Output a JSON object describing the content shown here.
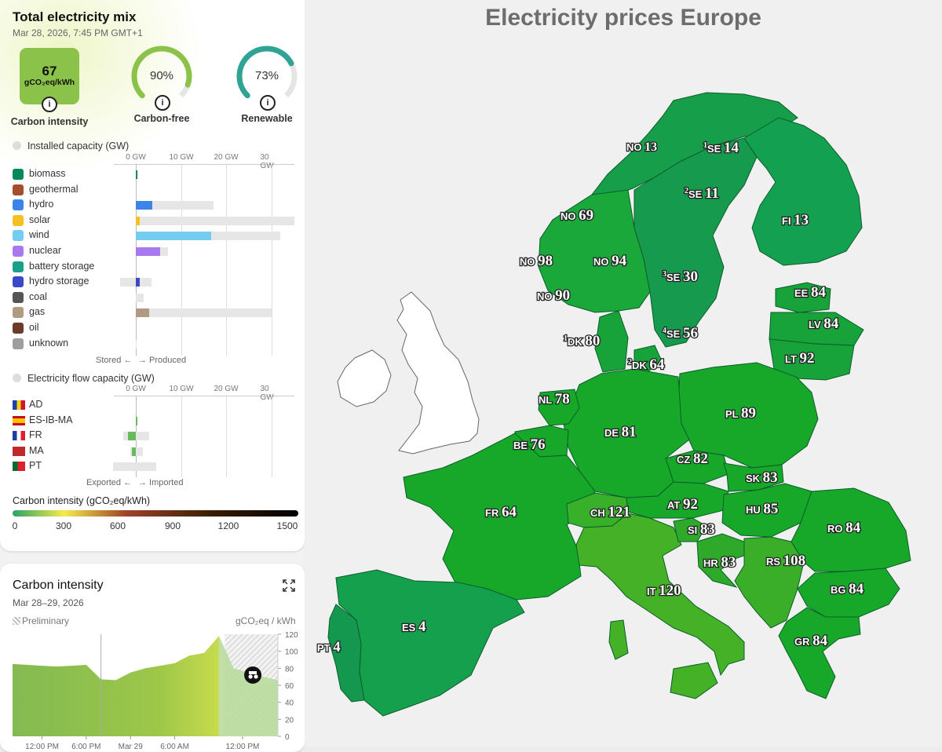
{
  "panel": {
    "title": "Total electricity mix",
    "datetime": "Mar 28, 2026, 7:45 PM GMT+1",
    "carbon_tile": {
      "value": "67",
      "unit": "gCO₂eq/kWh",
      "label": "Carbon intensity"
    },
    "carbon_free": {
      "value": "90%",
      "label": "Carbon-free",
      "fraction": 0.9
    },
    "renewable": {
      "value": "73%",
      "label": "Renewable",
      "fraction": 0.73
    },
    "installed_title": "Installed capacity (GW)",
    "flow_title": "Electricity flow capacity (GW)",
    "axis_ticks": [
      "0 GW",
      "10 GW",
      "20 GW",
      "30 GW"
    ],
    "sources": [
      {
        "name": "biomass",
        "color": "#008a5c",
        "production_gw": 0.4,
        "capacity_gw": 0.6
      },
      {
        "name": "geothermal",
        "color": "#a64d2e",
        "production_gw": 0,
        "capacity_gw": 0
      },
      {
        "name": "hydro",
        "color": "#3c84e8",
        "production_gw": 3.7,
        "capacity_gw": 17.2
      },
      {
        "name": "solar",
        "color": "#f5c021",
        "production_gw": 0.8,
        "capacity_gw": 35
      },
      {
        "name": "wind",
        "color": "#74cdf0",
        "production_gw": 16.7,
        "capacity_gw": 31.9
      },
      {
        "name": "nuclear",
        "color": "#a878ef",
        "production_gw": 5.3,
        "capacity_gw": 7.1
      },
      {
        "name": "battery storage",
        "color": "#1aa08a",
        "production_gw": 0,
        "capacity_gw": 0
      },
      {
        "name": "hydro storage",
        "color": "#3b48c8",
        "production_gw": 0.8,
        "capacity_gw": 3.4,
        "storage_capacity_gw": -3.4
      },
      {
        "name": "coal",
        "color": "#555555",
        "production_gw": 0,
        "capacity_gw": 1.8
      },
      {
        "name": "gas",
        "color": "#b09a82",
        "production_gw": 2.9,
        "capacity_gw": 30
      },
      {
        "name": "oil",
        "color": "#6b3b2a",
        "production_gw": 0,
        "capacity_gw": 0
      },
      {
        "name": "unknown",
        "color": "#9e9e9e",
        "production_gw": 0,
        "capacity_gw": 0.2
      }
    ],
    "stored_label": "Stored ←",
    "produced_label": "→ Produced",
    "flows": [
      {
        "name": "AD",
        "flow_gw": 0,
        "import_cap_gw": 0,
        "export_cap_gw": 0
      },
      {
        "name": "ES-IB-MA",
        "flow_gw": 0.3,
        "import_cap_gw": 0.3,
        "export_cap_gw": 0
      },
      {
        "name": "FR",
        "flow_gw": -1.8,
        "import_cap_gw": 3.0,
        "export_cap_gw": 2.8
      },
      {
        "name": "MA",
        "flow_gw": -0.9,
        "import_cap_gw": 1.5,
        "export_cap_gw": 1.3
      },
      {
        "name": "PT",
        "flow_gw": 0,
        "import_cap_gw": 4.5,
        "export_cap_gw": 5.0
      }
    ],
    "exported_label": "Exported ←",
    "imported_label": "→ Imported",
    "ci_scale_title": "Carbon intensity (gCO₂eq/kWh)",
    "ci_scale_ticks": [
      "0",
      "300",
      "600",
      "900",
      "1200",
      "1500"
    ]
  },
  "ci_chart": {
    "title": "Carbon intensity",
    "date_range": "Mar 28–29, 2026",
    "preliminary_label": "Preliminary",
    "unit_label": "gCO₂eq / kWh",
    "y_ticks": [
      "0",
      "20",
      "40",
      "60",
      "80",
      "100",
      "120"
    ],
    "x_ticks": [
      "12:00 PM",
      "6:00 PM",
      "Mar 29",
      "6:00 AM",
      "12:00 PM"
    ]
  },
  "chart_data": {
    "type": "area",
    "title": "Carbon intensity",
    "xlabel": "",
    "ylabel": "gCO₂eq / kWh",
    "ylim": [
      0,
      120
    ],
    "x": [
      "Mar 28 08:00",
      "Mar 28 10:00",
      "Mar 28 12:00",
      "Mar 28 14:00",
      "Mar 28 16:00",
      "Mar 28 18:00",
      "Mar 28 19:45",
      "Mar 28 22:00",
      "Mar 29 00:00",
      "Mar 29 02:00",
      "Mar 29 04:00",
      "Mar 29 06:00",
      "Mar 29 07:00",
      "Mar 29 08:00",
      "Mar 29 09:00",
      "Mar 29 10:00",
      "Mar 29 11:00",
      "Mar 29 12:00",
      "Mar 29 14:00"
    ],
    "series": [
      {
        "values": [
          85,
          84,
          83,
          82,
          83,
          84,
          67,
          66,
          75,
          80,
          83,
          86,
          95,
          98,
          118,
          80,
          75,
          70,
          66
        ]
      }
    ]
  },
  "map": {
    "title": "Electricity prices Europe",
    "labels": [
      {
        "code": "NO",
        "sup": "",
        "value": "13"
      },
      {
        "code": "SE",
        "sup": "1",
        "value": "14"
      },
      {
        "code": "SE",
        "sup": "2",
        "value": "11"
      },
      {
        "code": "FI",
        "sup": "",
        "value": "13"
      },
      {
        "code": "NO",
        "sup": "",
        "value": "69"
      },
      {
        "code": "NO",
        "sup": "",
        "value": "98"
      },
      {
        "code": "NO",
        "sup": "",
        "value": "94"
      },
      {
        "code": "NO",
        "sup": "",
        "value": "90"
      },
      {
        "code": "SE",
        "sup": "3",
        "value": "30"
      },
      {
        "code": "SE",
        "sup": "4",
        "value": "56"
      },
      {
        "code": "EE",
        "sup": "",
        "value": "84"
      },
      {
        "code": "LV",
        "sup": "",
        "value": "84"
      },
      {
        "code": "LT",
        "sup": "",
        "value": "92"
      },
      {
        "code": "DK",
        "sup": "1",
        "value": "80"
      },
      {
        "code": "DK",
        "sup": "2",
        "value": "64"
      },
      {
        "code": "NL",
        "sup": "",
        "value": "78"
      },
      {
        "code": "BE",
        "sup": "",
        "value": "76"
      },
      {
        "code": "DE",
        "sup": "",
        "value": "81"
      },
      {
        "code": "PL",
        "sup": "",
        "value": "89"
      },
      {
        "code": "CZ",
        "sup": "",
        "value": "82"
      },
      {
        "code": "SK",
        "sup": "",
        "value": "83"
      },
      {
        "code": "AT",
        "sup": "",
        "value": "92"
      },
      {
        "code": "HU",
        "sup": "",
        "value": "85"
      },
      {
        "code": "FR",
        "sup": "",
        "value": "64"
      },
      {
        "code": "CH",
        "sup": "",
        "value": "121"
      },
      {
        "code": "SI",
        "sup": "",
        "value": "83"
      },
      {
        "code": "RO",
        "sup": "",
        "value": "84"
      },
      {
        "code": "HR",
        "sup": "",
        "value": "83"
      },
      {
        "code": "RS",
        "sup": "",
        "value": "108"
      },
      {
        "code": "IT",
        "sup": "",
        "value": "120"
      },
      {
        "code": "BG",
        "sup": "",
        "value": "84"
      },
      {
        "code": "ES",
        "sup": "",
        "value": "4"
      },
      {
        "code": "PT",
        "sup": "",
        "value": "4"
      },
      {
        "code": "GR",
        "sup": "",
        "value": "84"
      }
    ]
  }
}
